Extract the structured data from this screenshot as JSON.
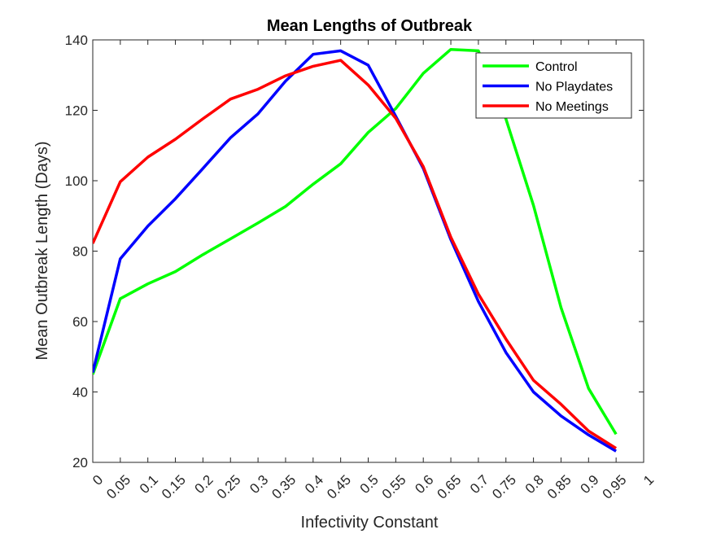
{
  "chart_data": {
    "type": "line",
    "title": "Mean Lengths of Outbreak",
    "xlabel": "Infectivity Constant",
    "ylabel": "Mean Outbreak Length (Days)",
    "xlim": [
      0,
      1
    ],
    "ylim": [
      20,
      140
    ],
    "x_ticks": [
      "0",
      "0.05",
      "0.1",
      "0.15",
      "0.2",
      "0.25",
      "0.3",
      "0.35",
      "0.4",
      "0.45",
      "0.5",
      "0.55",
      "0.6",
      "0.65",
      "0.7",
      "0.75",
      "0.8",
      "0.85",
      "0.9",
      "0.95",
      "1"
    ],
    "y_ticks": [
      "20",
      "40",
      "60",
      "80",
      "100",
      "120",
      "140"
    ],
    "grid": false,
    "legend_position": "top-right",
    "x": [
      0,
      0.05,
      0.1,
      0.15,
      0.2,
      0.25,
      0.3,
      0.35,
      0.4,
      0.45,
      0.5,
      0.55,
      0.6,
      0.65,
      0.7,
      0.75,
      0.8,
      0.85,
      0.9,
      0.95
    ],
    "series": [
      {
        "name": "Control",
        "color": "#00ff00",
        "values": [
          45,
          66.5,
          70.7,
          74.2,
          79,
          83.5,
          88,
          92.7,
          99,
          104.8,
          113.7,
          120.5,
          130.5,
          137.3,
          136.9,
          117.5,
          93,
          64,
          41,
          28
        ]
      },
      {
        "name": "No Playdates",
        "color": "#0000ff",
        "values": [
          45.5,
          77.8,
          87.1,
          94.9,
          103.5,
          112.2,
          119,
          128.3,
          135.9,
          136.9,
          132.8,
          118.3,
          103.5,
          83.3,
          65.7,
          51.2,
          40,
          33.2,
          27.8,
          23.2
        ]
      },
      {
        "name": "No Meetings",
        "color": "#ff0000",
        "values": [
          82.2,
          99.7,
          106.7,
          111.8,
          117.6,
          123.2,
          126,
          129.8,
          132.5,
          134.2,
          127.2,
          117.7,
          104,
          84,
          67.8,
          55,
          43.3,
          36.5,
          28.9,
          24
        ]
      }
    ]
  }
}
